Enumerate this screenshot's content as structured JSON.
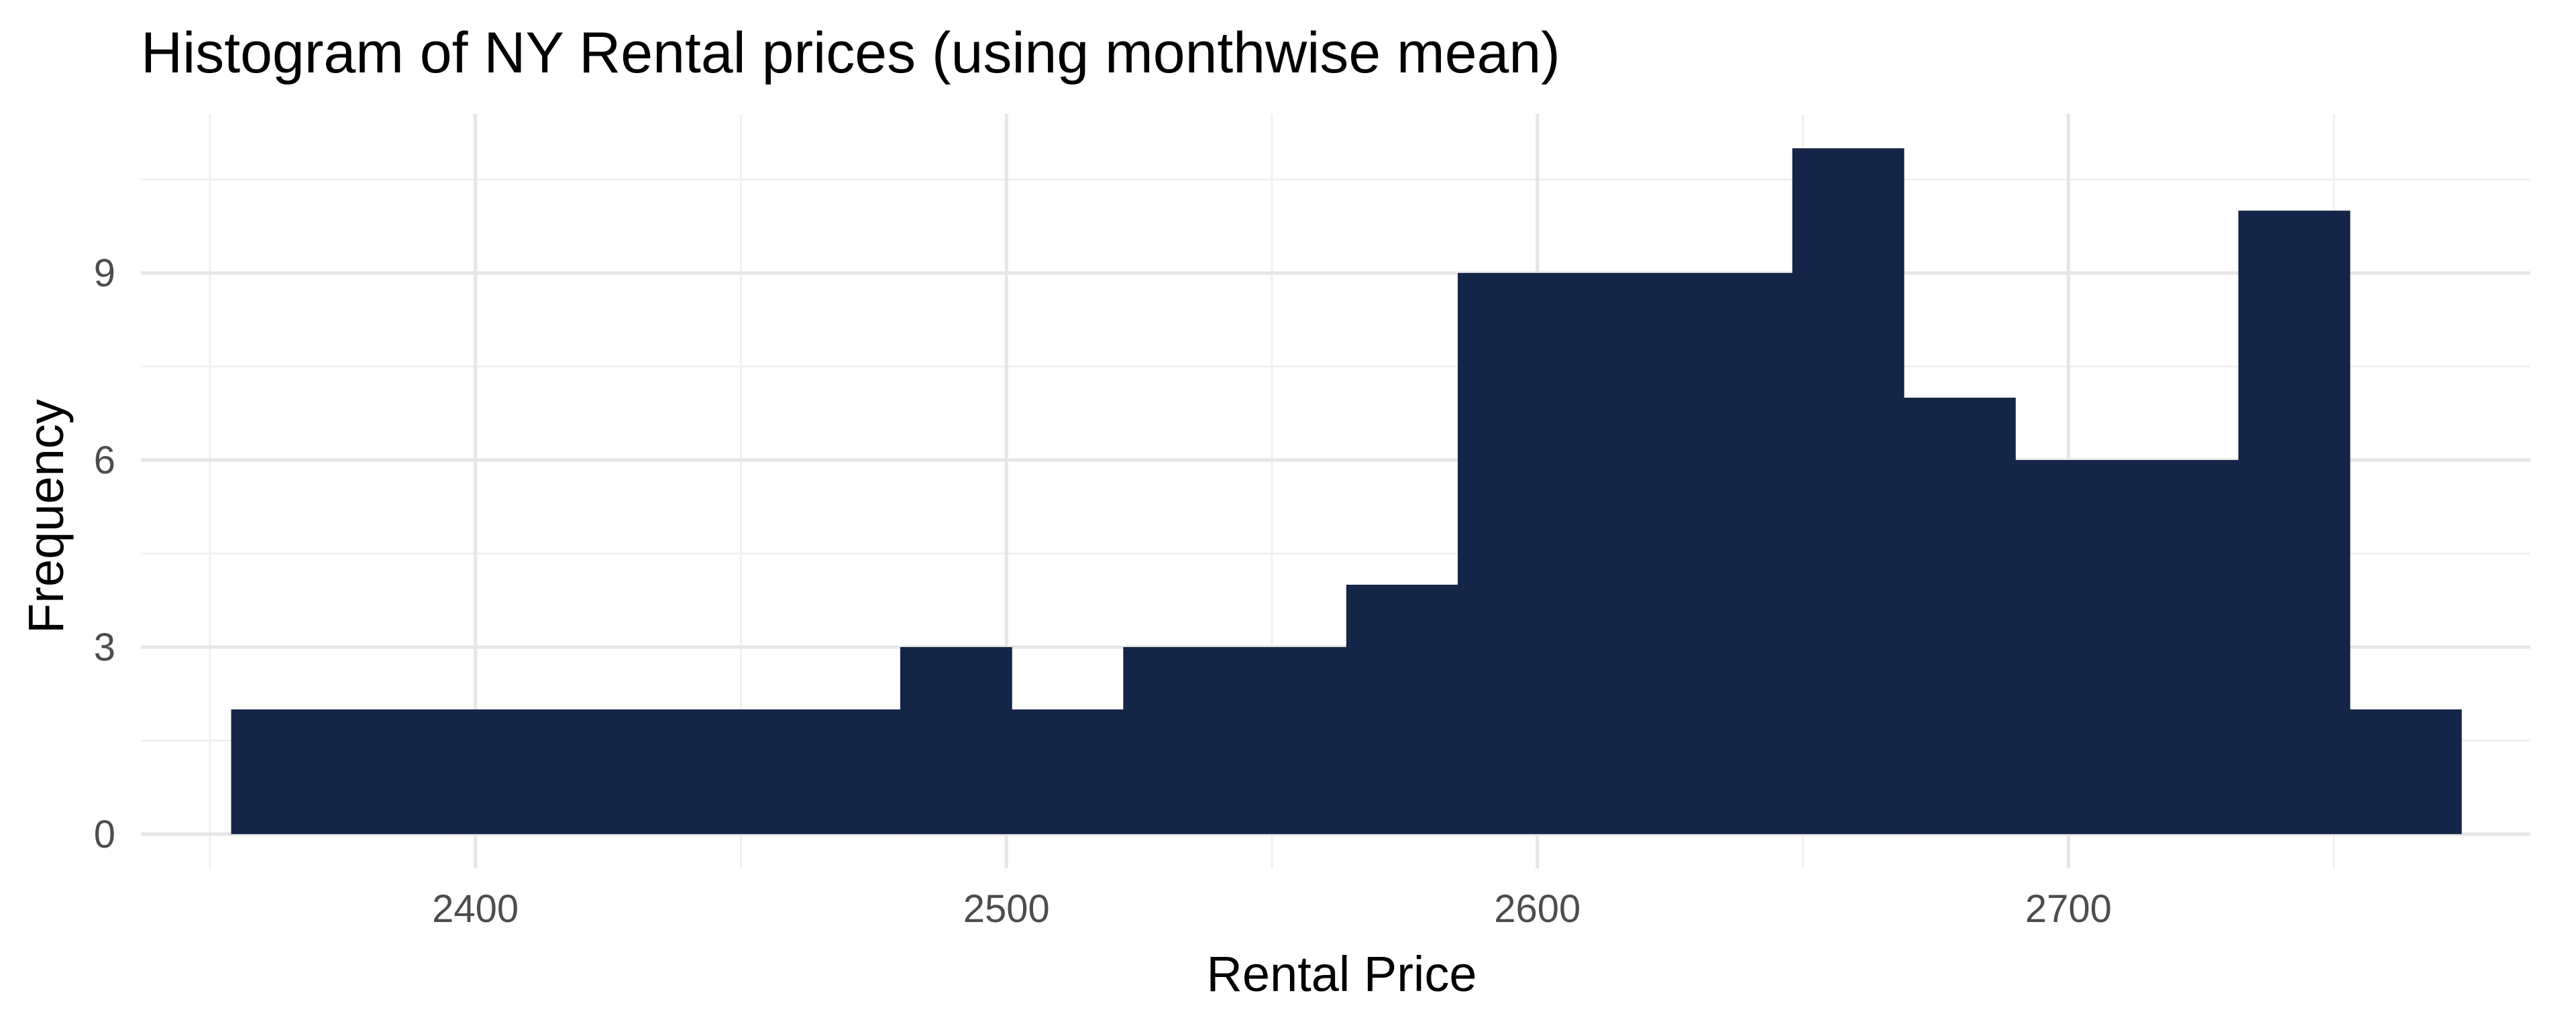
{
  "chart_data": {
    "type": "bar",
    "title": "Histogram of NY Rental prices (using monthwise mean)",
    "xlabel": "Rental Price",
    "ylabel": "Frequency",
    "x_ticks": [
      2400,
      2500,
      2600,
      2700
    ],
    "y_ticks": [
      0,
      3,
      6,
      9
    ],
    "xlim": [
      2337,
      2787
    ],
    "ylim": [
      -0.55,
      11.55
    ],
    "bin_width": 21,
    "grid": true,
    "bar_color": "#142547",
    "bins": [
      {
        "x_start": 2354,
        "x_end": 2375,
        "count": 2
      },
      {
        "x_start": 2375,
        "x_end": 2396,
        "count": 2
      },
      {
        "x_start": 2396,
        "x_end": 2417,
        "count": 2
      },
      {
        "x_start": 2417,
        "x_end": 2438,
        "count": 2
      },
      {
        "x_start": 2438,
        "x_end": 2459,
        "count": 2
      },
      {
        "x_start": 2459,
        "x_end": 2480,
        "count": 2
      },
      {
        "x_start": 2480,
        "x_end": 2501,
        "count": 3
      },
      {
        "x_start": 2501,
        "x_end": 2522,
        "count": 2
      },
      {
        "x_start": 2522,
        "x_end": 2543,
        "count": 3
      },
      {
        "x_start": 2543,
        "x_end": 2564,
        "count": 3
      },
      {
        "x_start": 2564,
        "x_end": 2585,
        "count": 4
      },
      {
        "x_start": 2585,
        "x_end": 2606,
        "count": 9
      },
      {
        "x_start": 2606,
        "x_end": 2627,
        "count": 9
      },
      {
        "x_start": 2627,
        "x_end": 2648,
        "count": 9
      },
      {
        "x_start": 2648,
        "x_end": 2669,
        "count": 11
      },
      {
        "x_start": 2669,
        "x_end": 2690,
        "count": 7
      },
      {
        "x_start": 2690,
        "x_end": 2711,
        "count": 6
      },
      {
        "x_start": 2711,
        "x_end": 2732,
        "count": 6
      },
      {
        "x_start": 2732,
        "x_end": 2753,
        "count": 10
      },
      {
        "x_start": 2753,
        "x_end": 2774,
        "count": 2
      }
    ]
  }
}
